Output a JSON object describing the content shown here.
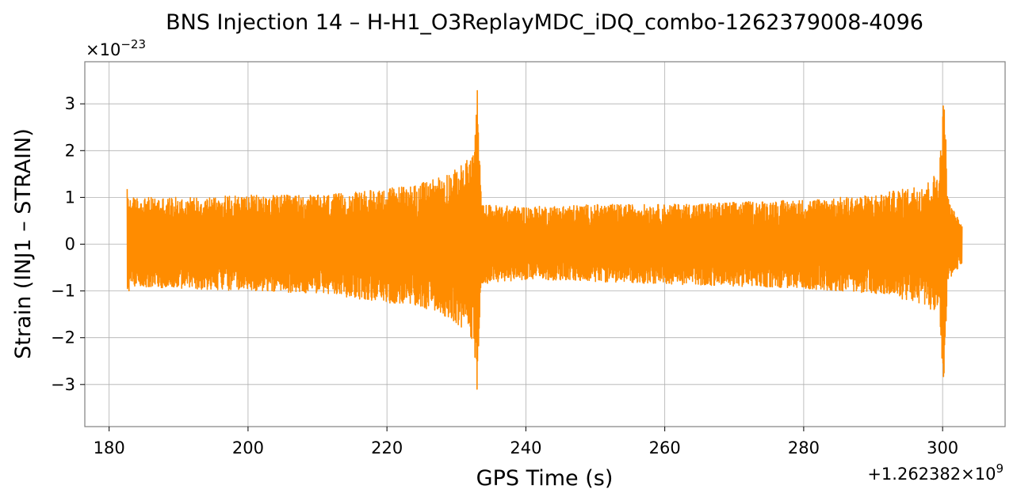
{
  "chart_data": {
    "type": "line",
    "title": "BNS Injection 14 – H-H1_O3ReplayMDC_iDQ_combo-1262379008-4096",
    "xlabel": "GPS Time (s)",
    "ylabel": "Strain (INJ1 – STRAIN)",
    "x_offset_label": "+1.262382×10",
    "x_offset_exponent": "9",
    "y_scale_label": "×10",
    "y_scale_exponent": "−23",
    "xlim": [
      176.5,
      309.0
    ],
    "ylim": [
      -3.9,
      3.9
    ],
    "xticks": [
      180,
      200,
      220,
      240,
      260,
      280,
      300
    ],
    "xtick_labels": [
      "180",
      "200",
      "220",
      "240",
      "260",
      "280",
      "300"
    ],
    "yticks": [
      -3,
      -2,
      -1,
      0,
      1,
      2,
      3
    ],
    "ytick_labels": [
      "−3",
      "−2",
      "−1",
      "0",
      "1",
      "2",
      "3"
    ],
    "grid": true,
    "series": [
      {
        "color": "#ff8c00",
        "description_points": "amplitude envelope of the strain time series",
        "envelope": {
          "x": [
            182.6,
            183.0,
            190.0,
            200.0,
            210.0,
            215.0,
            220.0,
            225.0,
            228.0,
            230.0,
            231.5,
            232.5,
            233.0,
            233.2,
            233.6,
            240.0,
            250.0,
            260.0,
            270.0,
            280.0,
            290.0,
            295.0,
            298.0,
            299.5,
            300.3,
            300.6,
            300.9,
            301.3,
            302.8
          ],
          "upper": [
            1.2,
            1.0,
            1.0,
            1.05,
            1.05,
            1.1,
            1.2,
            1.3,
            1.5,
            1.6,
            1.8,
            2.0,
            3.4,
            2.6,
            0.85,
            0.8,
            0.85,
            0.85,
            0.9,
            0.95,
            1.05,
            1.2,
            1.35,
            1.6,
            3.5,
            1.4,
            0.9,
            0.8,
            0.4
          ],
          "lower": [
            -1.2,
            -0.9,
            -0.95,
            -1.0,
            -1.05,
            -1.15,
            -1.25,
            -1.35,
            -1.5,
            -1.7,
            -1.9,
            -2.1,
            -3.2,
            -2.2,
            -0.85,
            -0.75,
            -0.8,
            -0.85,
            -0.9,
            -0.95,
            -1.05,
            -1.2,
            -1.35,
            -1.6,
            -3.5,
            -1.3,
            -0.8,
            -0.7,
            -0.4
          ]
        }
      }
    ]
  }
}
